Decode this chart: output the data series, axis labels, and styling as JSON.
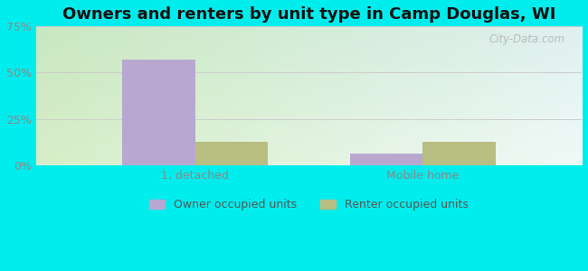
{
  "title": "Owners and renters by unit type in Camp Douglas, WI",
  "categories": [
    "1, detached",
    "Mobile home"
  ],
  "owner_values": [
    57.0,
    6.5
  ],
  "renter_values": [
    12.5,
    12.5
  ],
  "owner_color": "#b8a8d0",
  "renter_color": "#b8be82",
  "ylim": [
    0,
    75
  ],
  "yticks": [
    0,
    25,
    50,
    75
  ],
  "ytick_labels": [
    "0%",
    "25%",
    "50%",
    "75%"
  ],
  "bar_width": 0.32,
  "background_color": "#00eded",
  "grad_top_left": "#c8e8c0",
  "grad_top_right": "#e0f0f0",
  "grad_bottom_left": "#d8eec8",
  "grad_bottom_right": "#f0faf8",
  "legend_labels": [
    "Owner occupied units",
    "Renter occupied units"
  ],
  "watermark": "City-Data.com",
  "title_fontsize": 13,
  "tick_fontsize": 9,
  "legend_fontsize": 9,
  "tick_color": "#888888",
  "grid_color": "#cccccc"
}
